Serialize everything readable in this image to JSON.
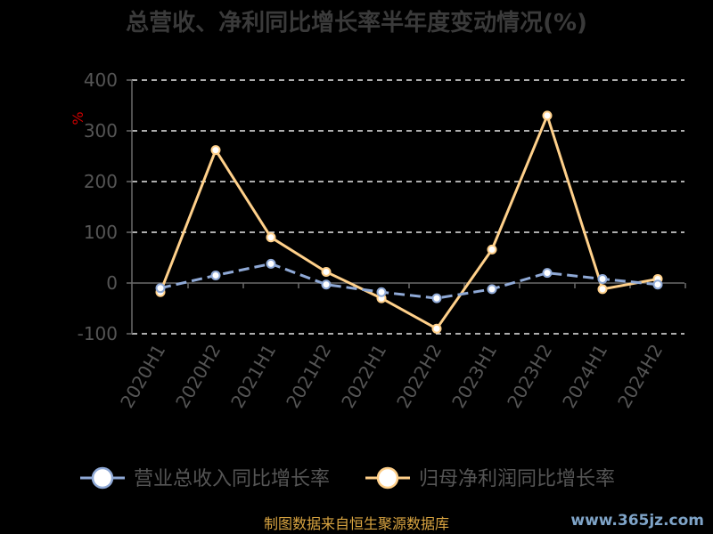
{
  "chart_data": {
    "type": "line",
    "title": "总营收、净利同比增长率半年度变动情况(%)",
    "ylabel": "%",
    "categories": [
      "2020H1",
      "2020H2",
      "2021H1",
      "2021H2",
      "2022H1",
      "2022H2",
      "2023H1",
      "2023H2",
      "2024H1",
      "2024H2"
    ],
    "ylim": [
      -100,
      400
    ],
    "yticks": [
      -100,
      0,
      100,
      200,
      300,
      400
    ],
    "grid": true,
    "legend_position": "bottom",
    "series": [
      {
        "name": "营业总收入同比增长率",
        "color": "#8fa9d6",
        "line_style": "dashed",
        "values": [
          -10,
          15,
          38,
          -3,
          -18,
          -30,
          -12,
          20,
          8,
          -3
        ]
      },
      {
        "name": "归母净利润同比增长率",
        "color": "#ffd08a",
        "line_style": "solid",
        "values": [
          -18,
          262,
          90,
          22,
          -30,
          -90,
          66,
          330,
          -12,
          8
        ]
      }
    ]
  },
  "footer": {
    "source": "制图数据来自恒生聚源数据库",
    "watermark": "www.365jz.com"
  }
}
